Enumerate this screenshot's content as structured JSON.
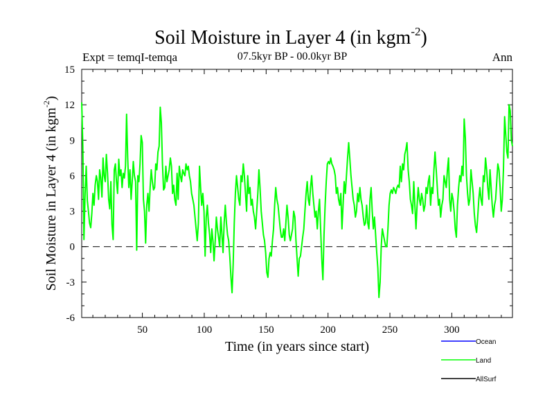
{
  "chart_data": {
    "type": "line",
    "title": "Soil Moisture in Layer 4 (in kgm",
    "title_sup": "-2",
    "title_close": ")",
    "subtitle": "07.5kyr BP - 00.0kyr BP",
    "expt_label": "Expt = temqI-temqa",
    "season_label": "Ann",
    "xlabel": "Time (in years since start)",
    "ylabel": "Soil Moisture in Layer 4 (in kgm",
    "ylabel_sup": "-2",
    "ylabel_close": ")",
    "xlim": [
      1,
      349
    ],
    "ylim": [
      -6,
      15
    ],
    "x_ticks": [
      50,
      100,
      150,
      200,
      250,
      300
    ],
    "y_ticks": [
      -6,
      -3,
      0,
      3,
      6,
      9,
      12,
      15
    ],
    "zero_line": 0,
    "legend_position": "bottom-right",
    "series": [
      {
        "name": "Ocean",
        "color": "#0000ff",
        "values": []
      },
      {
        "name": "Land",
        "color": "#00ff00",
        "values": [
          12.2,
          8.5,
          0.6,
          4.5,
          6.8,
          3.9,
          3.0,
          2.0,
          1.6,
          2.8,
          4.5,
          3.5,
          5.2,
          6.0,
          5.5,
          4.0,
          6.5,
          5.8,
          4.2,
          7.5,
          6.0,
          5.5,
          7.8,
          6.2,
          4.0,
          3.2,
          5.5,
          1.9,
          0.6,
          6.5,
          7.0,
          5.5,
          4.5,
          7.4,
          6.0,
          6.5,
          5.0,
          6.2,
          5.8,
          6.8,
          11.2,
          7.5,
          5.0,
          6.5,
          4.0,
          5.5,
          7.2,
          6.0,
          5.5,
          -0.3,
          6.0,
          5.5,
          7.0,
          9.4,
          8.8,
          4.0,
          3.0,
          0.3,
          3.5,
          4.5,
          3.0,
          5.0,
          6.5,
          5.5,
          4.8,
          5.0,
          7.0,
          6.5,
          8.0,
          8.5,
          11.8,
          10.5,
          7.0,
          4.8,
          5.0,
          6.8,
          5.5,
          6.0,
          6.5,
          7.5,
          6.8,
          4.5,
          5.2,
          4.0,
          3.5,
          6.2,
          4.0,
          6.8,
          6.0,
          5.5,
          6.5,
          6.2,
          6.0,
          7.0,
          6.5,
          6.8,
          6.0,
          5.5,
          4.5,
          4.0,
          3.5,
          2.5,
          1.5,
          0.5,
          2.0,
          6.8,
          5.0,
          3.5,
          4.5,
          3.0,
          -0.8,
          2.5,
          3.5,
          2.0,
          1.0,
          -0.5,
          1.5,
          0.5,
          -1.2,
          0.5,
          2.5,
          1.5,
          0.8,
          0.0,
          2.5,
          1.0,
          -0.5,
          2.0,
          3.5,
          2.0,
          1.0,
          0.5,
          -0.8,
          -2.5,
          -3.9,
          -1.5,
          2.0,
          4.5,
          6.0,
          5.0,
          4.0,
          3.5,
          6.0,
          5.5,
          7.0,
          6.0,
          4.5,
          3.0,
          6.0,
          4.5,
          5.0,
          3.5,
          4.0,
          3.0,
          2.5,
          1.5,
          3.0,
          4.5,
          6.5,
          5.0,
          3.0,
          2.0,
          1.0,
          0.5,
          -0.5,
          -2.2,
          -2.6,
          -1.0,
          -0.5,
          -0.8,
          0.5,
          1.5,
          3.5,
          5.0,
          4.0,
          3.5,
          2.5,
          1.5,
          0.8,
          0.8,
          1.5,
          0.5,
          2.0,
          3.5,
          2.5,
          1.0,
          0.5,
          1.0,
          1.5,
          3.0,
          2.5,
          0.5,
          -1.0,
          -2.5,
          -1.0,
          -0.8,
          0.0,
          0.8,
          1.5,
          3.0,
          4.5,
          5.5,
          4.0,
          3.5,
          5.0,
          6.0,
          4.5,
          3.5,
          2.5,
          3.0,
          1.5,
          3.0,
          4.0,
          1.5,
          -1.0,
          -2.8,
          1.0,
          3.5,
          5.5,
          7.0,
          7.2,
          7.0,
          7.5,
          7.0,
          6.8,
          6.5,
          6.0,
          4.5,
          5.0,
          4.0,
          3.5,
          4.5,
          1.5,
          3.5,
          5.5,
          4.5,
          6.0,
          7.5,
          8.8,
          7.5,
          6.0,
          5.0,
          4.0,
          3.5,
          2.5,
          3.0,
          4.5,
          3.8,
          5.0,
          4.0,
          3.5,
          2.5,
          1.8,
          2.0,
          3.5,
          2.0,
          1.5,
          4.0,
          5.0,
          3.0,
          1.5,
          2.5,
          1.0,
          -0.5,
          -1.8,
          -4.3,
          -3.0,
          0.0,
          1.5,
          1.0,
          0.5,
          0.0,
          0.0,
          1.5,
          3.5,
          4.5,
          4.8,
          4.5,
          5.0,
          4.8,
          4.5,
          5.0,
          5.2,
          5.0,
          6.8,
          5.5,
          7.0,
          6.5,
          7.8,
          8.2,
          8.8,
          6.5,
          5.5,
          4.0,
          3.5,
          2.8,
          5.5,
          3.5,
          1.5,
          3.5,
          5.0,
          4.0,
          3.5,
          4.5,
          4.0,
          3.0,
          3.5,
          5.0,
          4.5,
          5.5,
          6.0,
          3.5,
          5.0,
          4.5,
          6.5,
          8.0,
          6.5,
          5.0,
          3.5,
          4.0,
          2.5,
          3.5,
          4.0,
          6.0,
          5.5,
          5.0,
          6.5,
          7.5,
          4.0,
          3.0,
          4.5,
          4.0,
          3.0,
          1.5,
          0.8,
          3.5,
          5.0,
          6.0,
          5.5,
          6.8,
          6.0,
          10.8,
          9.2,
          6.0,
          4.5,
          3.5,
          4.0,
          6.5,
          5.5,
          4.5,
          2.8,
          1.8,
          1.2,
          2.5,
          4.0,
          5.0,
          4.0,
          3.5,
          6.0,
          5.5,
          7.5,
          6.5,
          5.0,
          4.0,
          6.5,
          5.0,
          3.5,
          2.5,
          3.5,
          4.0,
          5.5,
          7.0,
          6.5,
          5.0,
          3.0,
          4.0,
          6.5,
          11.0,
          9.5,
          8.0,
          7.5,
          12.0,
          11.5,
          9.0,
          8.5
        ]
      },
      {
        "name": "AllSurf",
        "color": "#000000",
        "values": []
      }
    ]
  }
}
